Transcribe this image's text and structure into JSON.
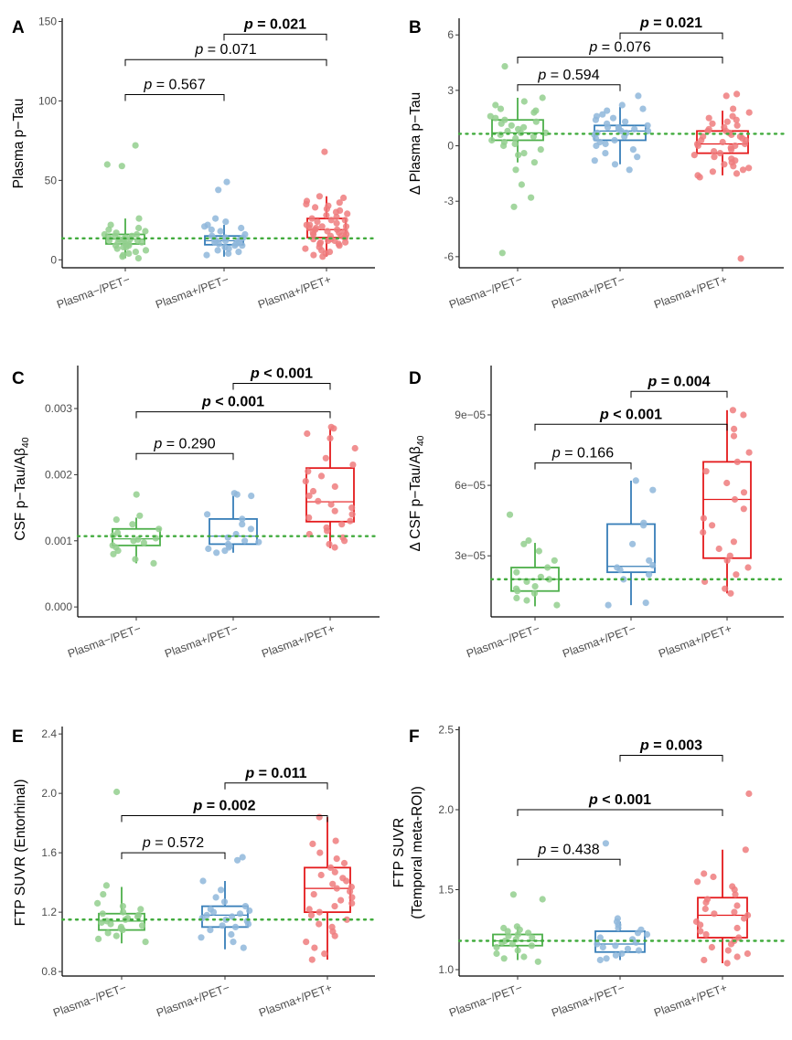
{
  "chart_data": [
    {
      "panel": "A",
      "type": "boxplot",
      "ylabel": "Plasma p−Tau",
      "categories": [
        "Plasma−/PET−",
        "Plasma+/PET−",
        "Plasma+/PET+"
      ],
      "ylim": [
        -5,
        152
      ],
      "yticks": [
        "0",
        "50",
        "100",
        "150"
      ],
      "ytick_values": [
        0,
        50,
        100,
        150
      ],
      "reference_line": 13.5,
      "colors": [
        "#4daf4a",
        "#377eb8",
        "#e41a1c"
      ],
      "boxes": [
        {
          "min": 1,
          "q1": 10,
          "median": 13,
          "q3": 16,
          "max": 26
        },
        {
          "min": 2,
          "q1": 9.5,
          "median": 12,
          "q3": 15,
          "max": 22
        },
        {
          "min": 2,
          "q1": 14,
          "median": 19,
          "q3": 26,
          "max": 40
        }
      ],
      "points": [
        [
          72,
          60,
          59,
          26,
          22,
          20,
          19,
          18,
          17,
          16,
          16,
          15,
          15,
          14,
          14,
          13,
          13,
          13,
          12,
          12,
          12,
          11,
          11,
          10,
          10,
          9,
          9,
          8,
          8,
          7,
          6,
          5,
          4,
          3,
          2,
          1
        ],
        [
          49,
          44,
          26,
          24,
          22,
          21,
          20,
          19,
          18,
          16,
          15,
          14,
          14,
          13,
          13,
          12,
          12,
          12,
          11,
          11,
          10,
          10,
          9,
          9,
          8,
          7,
          6,
          5,
          4,
          3
        ],
        [
          68,
          40,
          39,
          37,
          36,
          35,
          34,
          33,
          32,
          31,
          30,
          29,
          28,
          27,
          26,
          25,
          25,
          24,
          23,
          22,
          22,
          21,
          21,
          20,
          20,
          19,
          19,
          18,
          18,
          17,
          17,
          16,
          16,
          15,
          15,
          14,
          14,
          13,
          13,
          12,
          12,
          11,
          11,
          10,
          10,
          9,
          8,
          7,
          6,
          5,
          4,
          3,
          2
        ]
      ],
      "comparisons": [
        {
          "from": 1,
          "to": 2,
          "label": "0.021",
          "prefix": "= ",
          "bold": true,
          "y": 142
        },
        {
          "from": 0,
          "to": 2,
          "label": "0.071",
          "prefix": "= ",
          "bold": false,
          "y": 126
        },
        {
          "from": 0,
          "to": 1,
          "label": "0.567",
          "prefix": "= ",
          "bold": false,
          "y": 104
        }
      ]
    },
    {
      "panel": "B",
      "type": "boxplot",
      "ylabel": "Δ Plasma p−Tau",
      "categories": [
        "Plasma−/PET−",
        "Plasma+/PET−",
        "Plasma+/PET+"
      ],
      "ylim": [
        -6.6,
        6.9
      ],
      "yticks": [
        "-6",
        "-3",
        "0",
        "3",
        "6"
      ],
      "ytick_values": [
        -6,
        -3,
        0,
        3,
        6
      ],
      "reference_line": 0.65,
      "colors": [
        "#4daf4a",
        "#377eb8",
        "#e41a1c"
      ],
      "boxes": [
        {
          "min": -0.9,
          "q1": 0.3,
          "median": 0.7,
          "q3": 1.4,
          "max": 2.6
        },
        {
          "min": -1.0,
          "q1": 0.3,
          "median": 0.8,
          "q3": 1.1,
          "max": 2.1
        },
        {
          "min": -1.6,
          "q1": -0.4,
          "median": 0.1,
          "q3": 0.8,
          "max": 1.9
        }
      ],
      "points": [
        [
          4.3,
          2.6,
          2.4,
          2.2,
          2.0,
          1.9,
          1.8,
          1.6,
          1.5,
          1.4,
          1.3,
          1.2,
          1.1,
          1.0,
          0.9,
          0.8,
          0.7,
          0.7,
          0.6,
          0.5,
          0.4,
          0.3,
          0.2,
          0.1,
          0.0,
          -0.2,
          -0.4,
          -0.5,
          -0.9,
          -1.3,
          -2.1,
          -2.8,
          -3.3,
          -5.8
        ],
        [
          2.7,
          2.2,
          2.0,
          1.9,
          1.7,
          1.6,
          1.5,
          1.4,
          1.3,
          1.2,
          1.1,
          1.0,
          1.0,
          0.9,
          0.9,
          0.8,
          0.8,
          0.7,
          0.7,
          0.6,
          0.5,
          0.4,
          0.3,
          0.2,
          0.1,
          0.0,
          -0.2,
          -0.4,
          -0.6,
          -0.8,
          -1.0,
          -1.3
        ],
        [
          2.8,
          2.7,
          2.0,
          1.8,
          1.6,
          1.5,
          1.4,
          1.3,
          1.2,
          1.1,
          1.0,
          0.9,
          0.8,
          0.8,
          0.7,
          0.6,
          0.5,
          0.5,
          0.4,
          0.3,
          0.3,
          0.2,
          0.1,
          0.1,
          0.0,
          0.0,
          -0.1,
          -0.2,
          -0.3,
          -0.4,
          -0.5,
          -0.6,
          -0.7,
          -0.8,
          -0.9,
          -1.0,
          -1.1,
          -1.2,
          -1.3,
          -1.4,
          -1.5,
          -1.6,
          -1.7,
          -6.1
        ]
      ],
      "comparisons": [
        {
          "from": 1,
          "to": 2,
          "label": "0.021",
          "prefix": "= ",
          "bold": true,
          "y": 6.1
        },
        {
          "from": 0,
          "to": 2,
          "label": "0.076",
          "prefix": "= ",
          "bold": false,
          "y": 4.8
        },
        {
          "from": 0,
          "to": 1,
          "label": "0.594",
          "prefix": "= ",
          "bold": false,
          "y": 3.3
        }
      ]
    },
    {
      "panel": "C",
      "type": "boxplot",
      "ylabel": "CSF p−Tau/Aβ₄₀",
      "ylabel_main": "CSF p−Tau/Aβ",
      "ylabel_sub": "40",
      "categories": [
        "Plasma−/PET−",
        "Plasma+/PET−",
        "Plasma+/PET+"
      ],
      "ylim": [
        -0.00015,
        0.00365
      ],
      "yticks": [
        "0.000",
        "0.001",
        "0.002",
        "0.003"
      ],
      "ytick_values": [
        0,
        0.001,
        0.002,
        0.003
      ],
      "reference_line": 0.00107,
      "colors": [
        "#4daf4a",
        "#377eb8",
        "#e41a1c"
      ],
      "boxes": [
        {
          "min": 0.00066,
          "q1": 0.00093,
          "median": 0.00103,
          "q3": 0.00118,
          "max": 0.00135
        },
        {
          "min": 0.00082,
          "q1": 0.00095,
          "median": 0.00107,
          "q3": 0.00133,
          "max": 0.00168
        },
        {
          "min": 0.00089,
          "q1": 0.00129,
          "median": 0.00159,
          "q3": 0.0021,
          "max": 0.0027
        }
      ],
      "points": [
        [
          0.0017,
          0.00138,
          0.00132,
          0.00125,
          0.00118,
          0.00112,
          0.00108,
          0.00104,
          0.00102,
          0.001,
          0.00097,
          0.00093,
          0.0009,
          0.00085,
          0.0008,
          0.00072,
          0.00066
        ],
        [
          0.00172,
          0.0017,
          0.00168,
          0.0014,
          0.00133,
          0.00125,
          0.00118,
          0.0011,
          0.00105,
          0.001,
          0.00098,
          0.00095,
          0.00092,
          0.0009,
          0.00088,
          0.00085,
          0.00082
        ],
        [
          0.00272,
          0.0027,
          0.00262,
          0.00255,
          0.0024,
          0.00225,
          0.00215,
          0.00205,
          0.00198,
          0.0019,
          0.00182,
          0.00175,
          0.00168,
          0.0016,
          0.00155,
          0.0015,
          0.00145,
          0.0014,
          0.00135,
          0.0013,
          0.00125,
          0.0012,
          0.00115,
          0.0011,
          0.00105,
          0.001,
          0.00095,
          0.0009
        ]
      ],
      "comparisons": [
        {
          "from": 1,
          "to": 2,
          "label": "0.001",
          "prefix": "< ",
          "bold": true,
          "y": 0.00338
        },
        {
          "from": 0,
          "to": 2,
          "label": "0.001",
          "prefix": "< ",
          "bold": true,
          "y": 0.00295
        },
        {
          "from": 0,
          "to": 1,
          "label": "0.290",
          "prefix": "= ",
          "bold": false,
          "y": 0.00232
        }
      ]
    },
    {
      "panel": "D",
      "type": "boxplot",
      "ylabel": "Δ CSF p−Tau/Aβ₄₀",
      "ylabel_main": "Δ CSF p−Tau/Aβ",
      "ylabel_sub": "40",
      "categories": [
        "Plasma−/PET−",
        "Plasma+/PET−",
        "Plasma+/PET+"
      ],
      "ylim": [
        4e-06,
        0.000111
      ],
      "yticks": [
        "3e−05",
        "6e−05",
        "9e−05"
      ],
      "ytick_values": [
        3e-05,
        6e-05,
        9e-05
      ],
      "reference_line": 2e-05,
      "colors": [
        "#4daf4a",
        "#377eb8",
        "#e41a1c"
      ],
      "boxes": [
        {
          "min": 8.5e-06,
          "q1": 1.5e-05,
          "median": 2e-05,
          "q3": 2.5e-05,
          "max": 3.55e-05
        },
        {
          "min": 9e-06,
          "q1": 2.3e-05,
          "median": 2.55e-05,
          "q3": 4.35e-05,
          "max": 6.2e-05
        },
        {
          "min": 1.4e-05,
          "q1": 2.9e-05,
          "median": 5.4e-05,
          "q3": 7e-05,
          "max": 9.2e-05
        }
      ],
      "points": [
        [
          4.75e-05,
          3.65e-05,
          3.5e-05,
          3.2e-05,
          2.8e-05,
          2.5e-05,
          2.3e-05,
          2.1e-05,
          2e-05,
          1.9e-05,
          1.7e-05,
          1.6e-05,
          1.5e-05,
          1.4e-05,
          1.2e-05,
          1.1e-05,
          9e-06
        ],
        [
          6.2e-05,
          5.8e-05,
          4.4e-05,
          4.3e-05,
          3.5e-05,
          2.8e-05,
          2.6e-05,
          2.5e-05,
          2.4e-05,
          2.2e-05,
          2e-05,
          1e-05,
          9e-06
        ],
        [
          9.2e-05,
          9e-05,
          8.4e-05,
          8.1e-05,
          7.4e-05,
          7e-05,
          6.6e-05,
          6.1e-05,
          5.7e-05,
          5.4e-05,
          5e-05,
          4.6e-05,
          4.3e-05,
          4e-05,
          3.6e-05,
          3.3e-05,
          3e-05,
          2.8e-05,
          2.5e-05,
          2.2e-05,
          1.9e-05,
          1.6e-05,
          1.4e-05
        ]
      ],
      "comparisons": [
        {
          "from": 1,
          "to": 2,
          "label": "0.004",
          "prefix": "= ",
          "bold": true,
          "y": 0.0001
        },
        {
          "from": 0,
          "to": 2,
          "label": "0.001",
          "prefix": "< ",
          "bold": true,
          "y": 8.6e-05
        },
        {
          "from": 0,
          "to": 1,
          "label": "0.166",
          "prefix": "= ",
          "bold": false,
          "y": 6.95e-05
        }
      ]
    },
    {
      "panel": "E",
      "type": "boxplot",
      "ylabel": "FTP SUVR (Entorhinal)",
      "categories": [
        "Plasma−/PET−",
        "Plasma+/PET−",
        "Plasma+/PET+"
      ],
      "ylim": [
        0.77,
        2.45
      ],
      "yticks": [
        "0.8",
        "1.2",
        "1.6",
        "2.0",
        "2.4"
      ],
      "ytick_values": [
        0.8,
        1.2,
        1.6,
        2.0,
        2.4
      ],
      "reference_line": 1.15,
      "colors": [
        "#4daf4a",
        "#377eb8",
        "#e41a1c"
      ],
      "boxes": [
        {
          "min": 0.99,
          "q1": 1.08,
          "median": 1.14,
          "q3": 1.19,
          "max": 1.37
        },
        {
          "min": 0.95,
          "q1": 1.1,
          "median": 1.18,
          "q3": 1.24,
          "max": 1.41
        },
        {
          "min": 0.88,
          "q1": 1.2,
          "median": 1.36,
          "q3": 1.5,
          "max": 1.84
        }
      ],
      "points": [
        [
          2.01,
          1.38,
          1.32,
          1.26,
          1.24,
          1.22,
          1.2,
          1.19,
          1.18,
          1.17,
          1.16,
          1.15,
          1.14,
          1.13,
          1.12,
          1.11,
          1.1,
          1.09,
          1.08,
          1.06,
          1.04,
          1.02,
          1.0
        ],
        [
          1.57,
          1.55,
          1.41,
          1.35,
          1.3,
          1.27,
          1.24,
          1.22,
          1.21,
          1.2,
          1.19,
          1.18,
          1.17,
          1.16,
          1.15,
          1.14,
          1.12,
          1.11,
          1.1,
          1.08,
          1.05,
          1.03,
          1.0,
          0.96
        ],
        [
          1.84,
          1.68,
          1.66,
          1.6,
          1.56,
          1.53,
          1.5,
          1.47,
          1.45,
          1.43,
          1.41,
          1.39,
          1.37,
          1.36,
          1.34,
          1.32,
          1.3,
          1.28,
          1.26,
          1.24,
          1.22,
          1.2,
          1.18,
          1.15,
          1.12,
          1.1,
          1.07,
          1.04,
          1.0,
          0.96,
          0.92,
          0.88
        ]
      ],
      "comparisons": [
        {
          "from": 1,
          "to": 2,
          "label": "0.011",
          "prefix": "= ",
          "bold": true,
          "y": 2.07
        },
        {
          "from": 0,
          "to": 2,
          "label": "0.002",
          "prefix": "= ",
          "bold": true,
          "y": 1.85
        },
        {
          "from": 0,
          "to": 1,
          "label": "0.572",
          "prefix": "= ",
          "bold": false,
          "y": 1.6
        }
      ]
    },
    {
      "panel": "F",
      "type": "boxplot",
      "ylabel": "FTP SUVR\n(Temporal meta-ROI)",
      "ylabel_line1": "FTP SUVR",
      "ylabel_line2": "(Temporal meta-ROI)",
      "categories": [
        "Plasma−/PET−",
        "Plasma+/PET−",
        "Plasma+/PET+"
      ],
      "ylim": [
        0.96,
        2.52
      ],
      "yticks": [
        "1.0",
        "1.5",
        "2.0",
        "2.5"
      ],
      "ytick_values": [
        1.0,
        1.5,
        2.0,
        2.5
      ],
      "reference_line": 1.18,
      "colors": [
        "#4daf4a",
        "#377eb8",
        "#e41a1c"
      ],
      "boxes": [
        {
          "min": 1.06,
          "q1": 1.15,
          "median": 1.18,
          "q3": 1.22,
          "max": 1.27
        },
        {
          "min": 1.06,
          "q1": 1.11,
          "median": 1.16,
          "q3": 1.24,
          "max": 1.3
        },
        {
          "min": 1.04,
          "q1": 1.2,
          "median": 1.34,
          "q3": 1.45,
          "max": 1.75
        }
      ],
      "points": [
        [
          1.47,
          1.44,
          1.27,
          1.26,
          1.25,
          1.24,
          1.23,
          1.22,
          1.21,
          1.2,
          1.19,
          1.18,
          1.17,
          1.16,
          1.15,
          1.14,
          1.12,
          1.1,
          1.08,
          1.07,
          1.05
        ],
        [
          1.79,
          1.32,
          1.3,
          1.28,
          1.26,
          1.25,
          1.23,
          1.22,
          1.2,
          1.19,
          1.17,
          1.16,
          1.15,
          1.14,
          1.13,
          1.12,
          1.1,
          1.09,
          1.07,
          1.06
        ],
        [
          2.1,
          1.75,
          1.6,
          1.58,
          1.55,
          1.52,
          1.5,
          1.47,
          1.44,
          1.42,
          1.4,
          1.38,
          1.36,
          1.35,
          1.34,
          1.32,
          1.3,
          1.28,
          1.26,
          1.24,
          1.22,
          1.2,
          1.18,
          1.16,
          1.14,
          1.12,
          1.1,
          1.08,
          1.06,
          1.04
        ]
      ],
      "comparisons": [
        {
          "from": 1,
          "to": 2,
          "label": "0.003",
          "prefix": "= ",
          "bold": true,
          "y": 2.34
        },
        {
          "from": 0,
          "to": 2,
          "label": "0.001",
          "prefix": "< ",
          "bold": true,
          "y": 2.0
        },
        {
          "from": 0,
          "to": 1,
          "label": "0.438",
          "prefix": "= ",
          "bold": false,
          "y": 1.69
        }
      ]
    }
  ],
  "p_symbol": "p",
  "fill_colors": [
    "#93cf8e",
    "#8fb7da",
    "#ef7c7e"
  ]
}
